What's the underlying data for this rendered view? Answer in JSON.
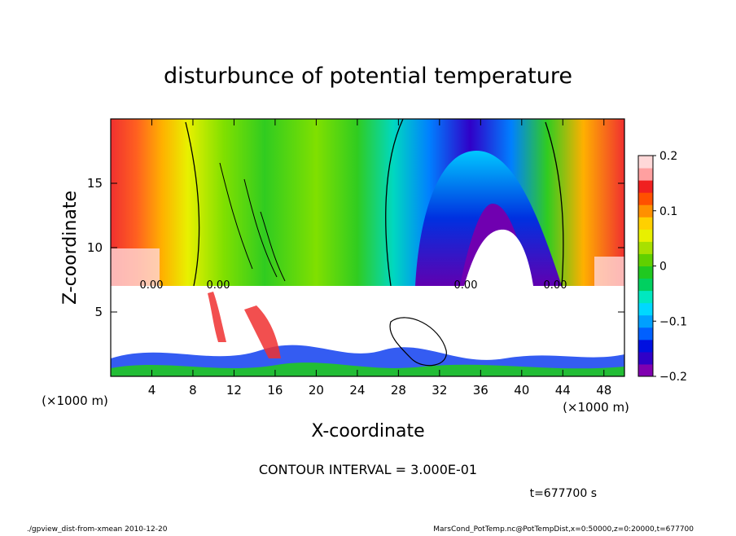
{
  "chart_data": {
    "type": "heatmap",
    "title": "disturbunce of potential temperature",
    "xlabel": "X-coordinate",
    "ylabel": "Z-coordinate",
    "x_unit": "(×1000 m)",
    "y_unit": "(×1000 m)",
    "xlim": [
      0,
      50
    ],
    "ylim": [
      0,
      20
    ],
    "x_ticks": [
      4,
      8,
      12,
      16,
      20,
      24,
      28,
      32,
      36,
      40,
      44,
      48
    ],
    "y_ticks": [
      5,
      10,
      15
    ],
    "colorbar": {
      "range": [
        -0.2,
        0.2
      ],
      "ticks": [
        {
          "value": 0.2,
          "label": "0.2"
        },
        {
          "value": 0.1,
          "label": "0.1"
        },
        {
          "value": 0,
          "label": "0"
        },
        {
          "value": -0.1,
          "label": "−0.1"
        },
        {
          "value": -0.2,
          "label": "−0.2"
        }
      ],
      "colors": [
        "#8000b0",
        "#3000c8",
        "#0010e0",
        "#0060ff",
        "#00a0ff",
        "#00d8ff",
        "#00e8c0",
        "#00d060",
        "#20c820",
        "#60d000",
        "#a8e000",
        "#e8f000",
        "#ffd000",
        "#ff9000",
        "#ff5000",
        "#f02020",
        "#ffa0a0",
        "#ffd8d8"
      ]
    },
    "contour_interval": "CONTOUR INTERVAL = 3.000E-01",
    "contour_labels": [
      "0.00",
      "0.00",
      "0.00",
      "0.00"
    ],
    "time_label": "t=677700 s"
  },
  "footer": {
    "left": "./gpview_dist-from-xmean  2010-12-20",
    "right": "MarsCond_PotTemp.nc@PotTempDist,x=0:50000,z=0:20000,t=677700"
  }
}
